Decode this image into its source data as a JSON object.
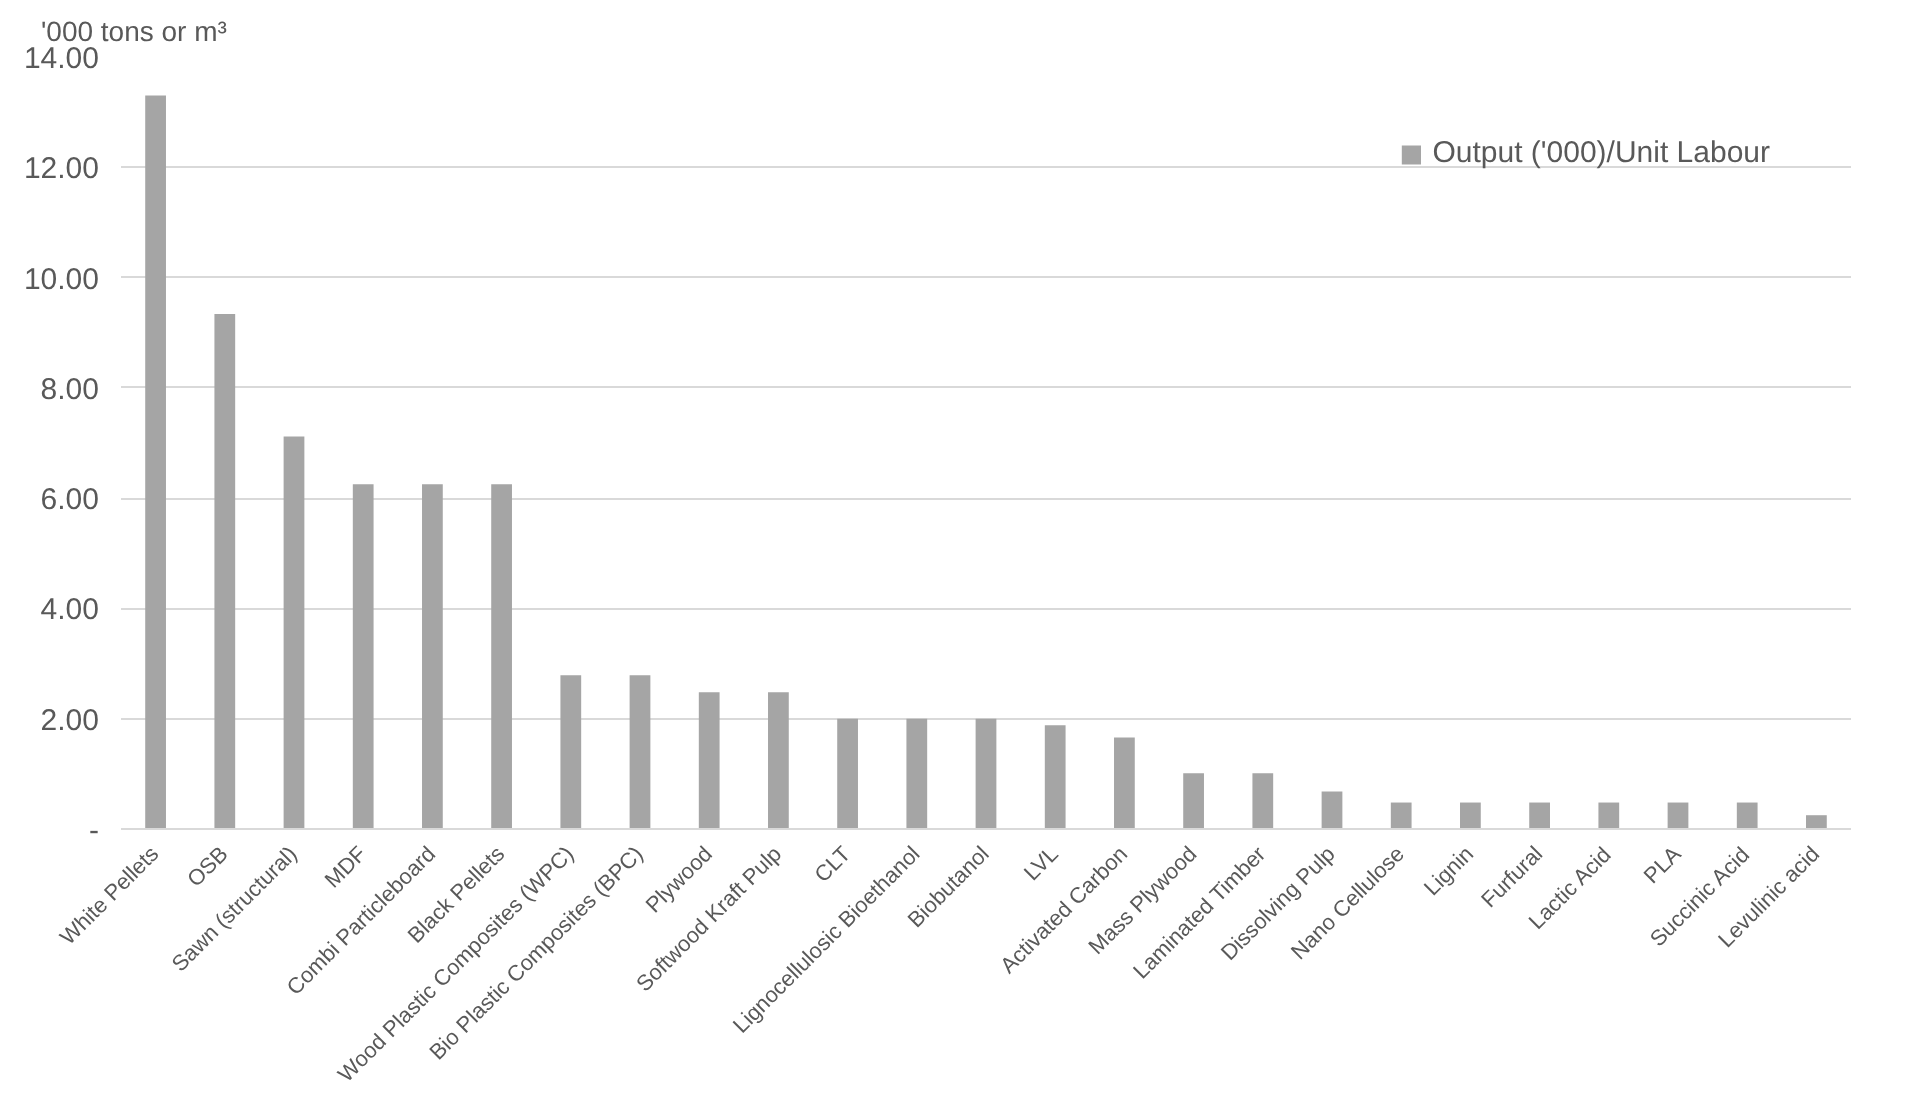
{
  "chart_data": {
    "type": "bar",
    "ylabel": "'000 tons or m³",
    "categories": [
      "White Pellets",
      "OSB",
      "Sawn (structural)",
      "MDF",
      "Combi Particleboard",
      "Black Pellets",
      "Wood Plastic Composites (WPC)",
      "Bio Plastic Composites (BPC)",
      "Plywood",
      "Softwood Kraft Pulp",
      "CLT",
      "Lignocellulosic Bioethanol",
      "Biobutanol",
      "LVL",
      "Activated Carbon",
      "Mass Plywood",
      "Laminated Timber",
      "Dissolving Pulp",
      "Nano Cellulose",
      "Lignin",
      "Furfural",
      "Lactic Acid",
      "PLA",
      "Succinic Acid",
      "Levulinic acid"
    ],
    "series": [
      {
        "name": "Output ('000)/Unit Labour",
        "color": "#a5a5a5",
        "values": [
          13.3,
          9.34,
          7.12,
          6.25,
          6.25,
          6.25,
          2.79,
          2.79,
          2.48,
          2.48,
          2.0,
          2.0,
          2.0,
          1.88,
          1.66,
          1.01,
          1.01,
          0.68,
          0.48,
          0.48,
          0.48,
          0.48,
          0.48,
          0.48,
          0.25
        ]
      }
    ],
    "ylim": [
      0,
      14
    ],
    "yticks": [
      {
        "value": 0,
        "label": "-"
      },
      {
        "value": 2,
        "label": "2.00"
      },
      {
        "value": 4,
        "label": "4.00"
      },
      {
        "value": 6,
        "label": "6.00"
      },
      {
        "value": 8,
        "label": "8.00"
      },
      {
        "value": 10,
        "label": "10.00"
      },
      {
        "value": 12,
        "label": "12.00"
      },
      {
        "value": 14,
        "label": "14.00"
      }
    ],
    "grid": "y",
    "legend": "top right"
  }
}
